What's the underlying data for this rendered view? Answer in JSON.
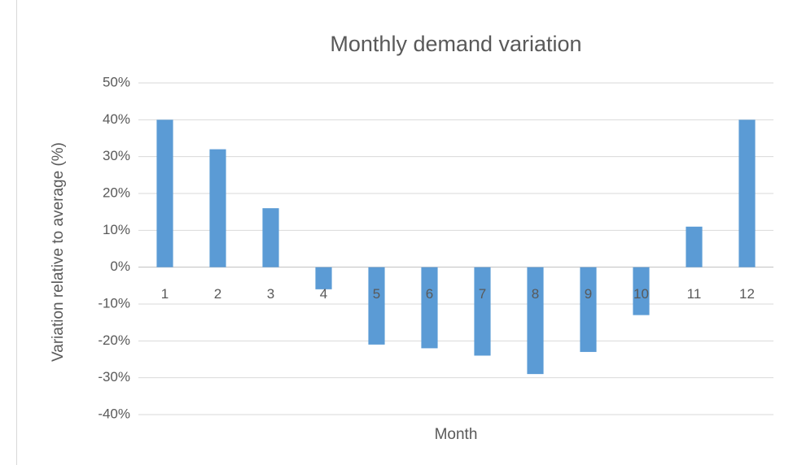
{
  "chart_data": {
    "type": "bar",
    "title": "Monthly demand variation",
    "x_label": "Month",
    "y_label": "Variation relative to  average (%)",
    "categories": [
      "1",
      "2",
      "3",
      "4",
      "5",
      "6",
      "7",
      "8",
      "9",
      "10",
      "11",
      "12"
    ],
    "values": [
      40,
      32,
      16,
      -6,
      -21,
      -22,
      -24,
      -29,
      -23,
      -13,
      11,
      40
    ],
    "color": "#5b9bd5",
    "ylim": [
      -40,
      50
    ],
    "yticks": [
      {
        "value": -40,
        "label": "-40%"
      },
      {
        "value": -30,
        "label": "-30%"
      },
      {
        "value": -20,
        "label": "-20%"
      },
      {
        "value": -10,
        "label": "-10%"
      },
      {
        "value": 0,
        "label": "0%"
      },
      {
        "value": 10,
        "label": "10%"
      },
      {
        "value": 20,
        "label": "20%"
      },
      {
        "value": 30,
        "label": "30%"
      },
      {
        "value": 40,
        "label": "40%"
      },
      {
        "value": 50,
        "label": "50%"
      }
    ],
    "grid": true
  }
}
